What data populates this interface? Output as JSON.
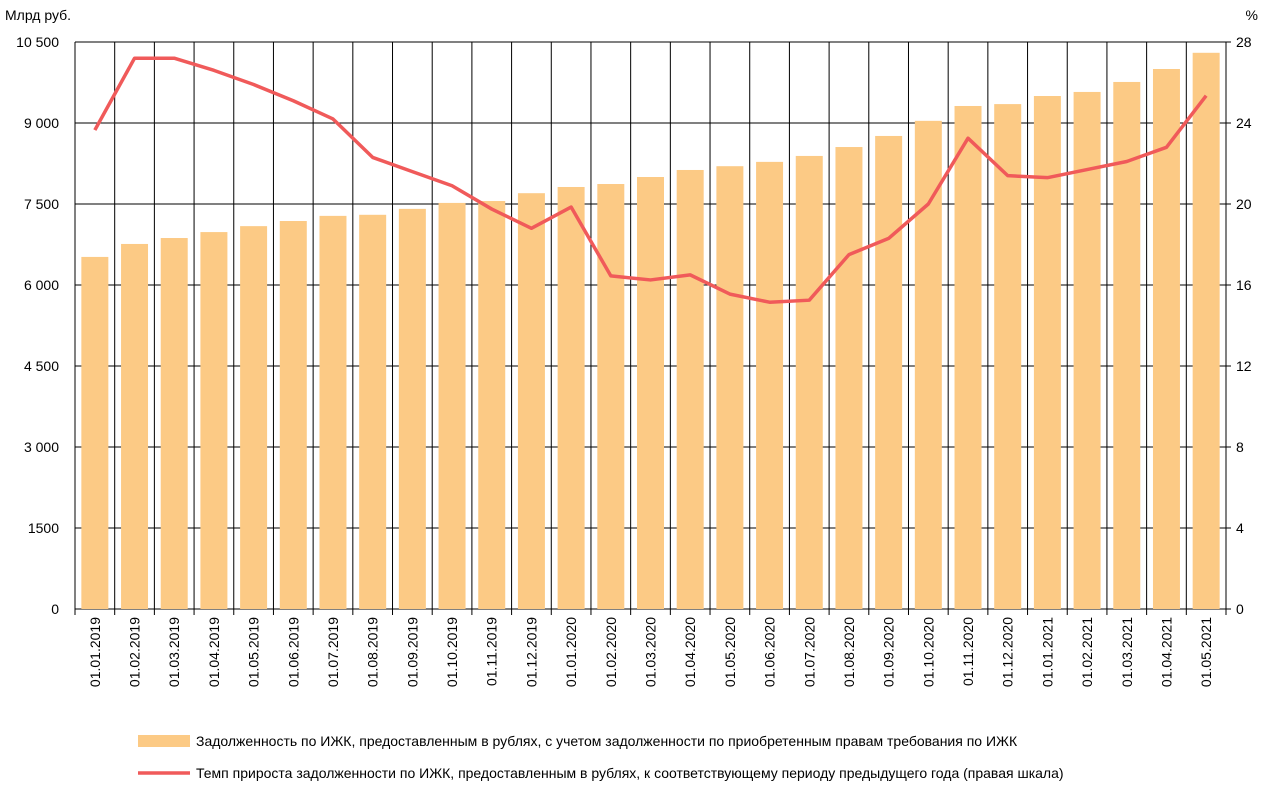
{
  "chart_data": {
    "type": "bar_line",
    "y_axis_label": "Млрд руб.",
    "y2_axis_label": "%",
    "categories": [
      "01.01.2019",
      "01.02.2019",
      "01.03.2019",
      "01.04.2019",
      "01.05.2019",
      "01.06.2019",
      "01.07.2019",
      "01.08.2019",
      "01.09.2019",
      "01.10.2019",
      "01.11.2019",
      "01.12.2019",
      "01.01.2020",
      "01.02.2020",
      "01.03.2020",
      "01.04.2020",
      "01.05.2020",
      "01.06.2020",
      "01.07.2020",
      "01.08.2020",
      "01.09.2020",
      "01.10.2020",
      "01.11.2020",
      "01.12.2020",
      "01.01.2021",
      "01.02.2021",
      "01.03.2021",
      "01.04.2021",
      "01.05.2021"
    ],
    "series": [
      {
        "name": "Задолженность по ИЖК, предоставленным в рублях, с учетом задолженности по приобретенным правам требования по ИЖК",
        "type": "bar",
        "color": "#fcca85",
        "values": [
          6520,
          6760,
          6870,
          6980,
          7090,
          7185,
          7280,
          7300,
          7410,
          7520,
          7555,
          7700,
          7815,
          7870,
          8000,
          8130,
          8200,
          8280,
          8390,
          8555,
          8760,
          9040,
          9315,
          9350,
          9500,
          9575,
          9760,
          10000,
          10300
        ]
      },
      {
        "name": "Темп прироста задолженности по ИЖК, предоставленным в рублях, к соответствующему периоду предыдущего года (правая шкала)",
        "type": "line",
        "color": "#f05a5a",
        "axis": "y2",
        "values": [
          23.65,
          27.2,
          27.2,
          26.6,
          25.9,
          25.1,
          24.2,
          22.3,
          21.6,
          20.9,
          19.75,
          18.8,
          19.85,
          16.45,
          16.25,
          16.5,
          15.55,
          15.15,
          15.25,
          17.5,
          18.3,
          20.0,
          23.25,
          21.4,
          21.3,
          21.7,
          22.1,
          22.8,
          25.35
        ]
      }
    ],
    "ylim": [
      0,
      10500
    ],
    "yticks": [
      0,
      1500,
      {
        "value": 3000,
        "label": "3 000"
      },
      {
        "value": 4500,
        "label": "4 500"
      },
      {
        "value": 6000,
        "label": "6 000"
      },
      {
        "value": 7500,
        "label": "7 500"
      },
      {
        "value": 9000,
        "label": "9 000"
      },
      {
        "value": 10500,
        "label": "10 500"
      }
    ],
    "y2lim": [
      0,
      28
    ],
    "y2ticks": [
      0,
      4,
      8,
      12,
      16,
      20,
      24,
      28
    ],
    "grid": true,
    "legend": "bottom"
  }
}
